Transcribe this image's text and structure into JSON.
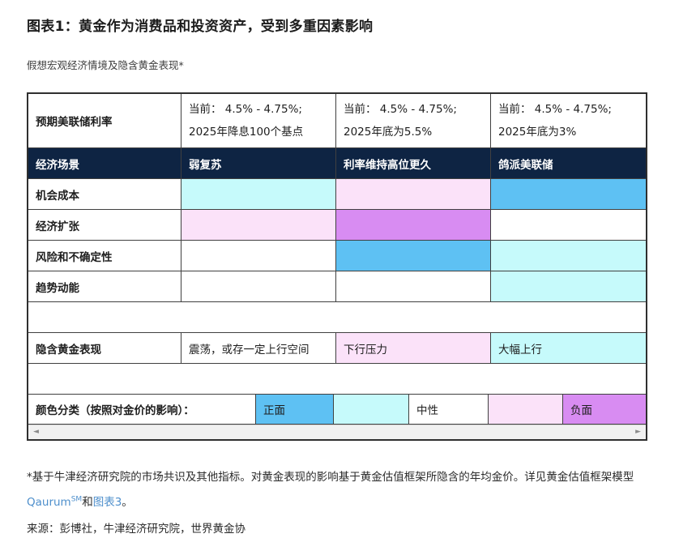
{
  "page": {
    "title": "图表1：黄金作为消费品和投资资产，受到多重因素影响",
    "subtitle": "假想宏观经济情境及隐含黄金表现*"
  },
  "colors": {
    "header_navy": "#0e2443",
    "positive_strong": "#5ec1f3",
    "positive_mild": "#c6fafb",
    "neutral": "#ffffff",
    "negative_mild": "#fbe2f9",
    "negative_strong": "#d88cf2"
  },
  "table": {
    "rate_row": {
      "label": "预期美联储利率",
      "cells": [
        {
          "line1": "当前： 4.5% - 4.75%;",
          "line2": "2025年降息100个基点"
        },
        {
          "line1": "当前： 4.5% - 4.75%;",
          "line2": "2025年底为5.5%"
        },
        {
          "line1": "当前： 4.5% - 4.75%;",
          "line2": "2025年底为3%"
        }
      ]
    },
    "scenario_row": {
      "label": "经济场景",
      "cells": [
        "弱复苏",
        "利率维持高位更久",
        "鸽派美联储"
      ]
    },
    "factor_rows": [
      {
        "label": "机会成本",
        "cells": [
          "positive_mild",
          "negative_mild",
          "positive_strong"
        ]
      },
      {
        "label": "经济扩张",
        "cells": [
          "negative_mild",
          "negative_strong",
          "neutral"
        ]
      },
      {
        "label": "风险和不确定性",
        "cells": [
          "neutral",
          "positive_strong",
          "positive_mild"
        ]
      },
      {
        "label": "趋势动能",
        "cells": [
          "neutral",
          "neutral",
          "positive_mild"
        ]
      }
    ],
    "implied_row": {
      "label": "隐含黄金表现",
      "cells": [
        {
          "text": "震荡，或存一定上行空间",
          "color": "neutral"
        },
        {
          "text": "下行压力",
          "color": "negative_mild"
        },
        {
          "text": "大幅上行",
          "color": "positive_mild"
        }
      ]
    },
    "legend_row": {
      "label": "颜色分类（按照对金价的影响）：",
      "cells": [
        {
          "text": "正面",
          "color": "positive_strong"
        },
        {
          "text": "",
          "color": "positive_mild"
        },
        {
          "text": "中性",
          "color": "neutral"
        },
        {
          "text": "",
          "color": "negative_mild"
        },
        {
          "text": "负面",
          "color": "negative_strong"
        }
      ]
    }
  },
  "scrollbar": {
    "left_arrow": "◄",
    "right_arrow": "►"
  },
  "footnote": {
    "part1": "*基于牛津经济研究院的市场共识及其他指标。对黄金表现的影响基于黄金估值框架所隐含的年均金价。详见黄金估值框架模型",
    "link_qaurum": "Qaurum",
    "sup": "SM",
    "part2": "和",
    "link_chart3": "图表3",
    "part3": "。"
  },
  "source": "来源：彭博社，牛津经济研究院，世界黄金协"
}
